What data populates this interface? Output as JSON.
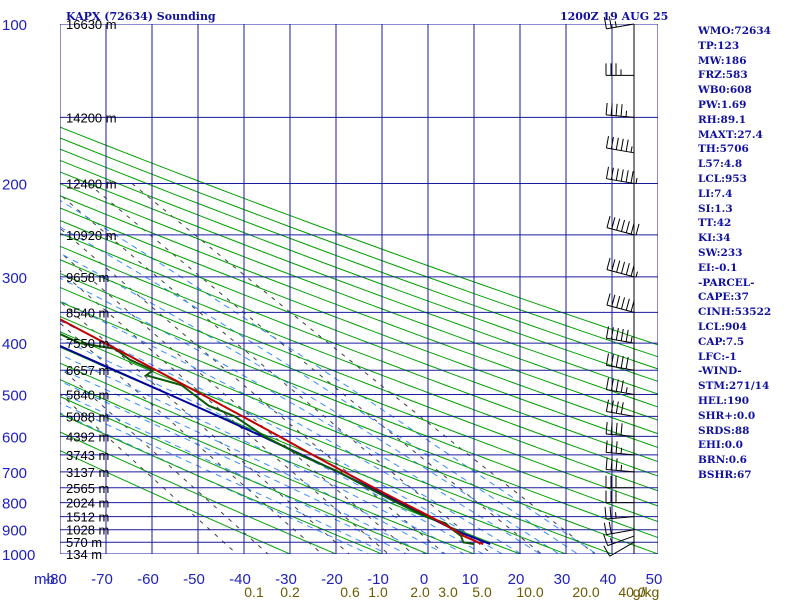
{
  "header": {
    "title_left": "KAPX (72634) Sounding",
    "title_right": "1200Z 19 AUG 25"
  },
  "colors": {
    "grid": "#1a1aa0",
    "temperature": "#c00000",
    "dewpoint": "#0a5a0a",
    "parcel": "#0000a0",
    "dry_adiabat": "#00a000",
    "moist_adiabat": "#3a8cff",
    "mixing_ratio": "#404040",
    "wind_barb": "#000000"
  },
  "chart_data": {
    "type": "skewt",
    "title": "KAPX (72634) Sounding",
    "valid_time": "1200Z 19 AUG 25",
    "pressure_axis": {
      "unit": "mb",
      "ticks": [
        100,
        200,
        300,
        400,
        500,
        600,
        700,
        800,
        900,
        1000
      ],
      "scale": "log",
      "range": [
        100,
        1000
      ]
    },
    "temperature_axis": {
      "ticks": [
        -80,
        -70,
        -60,
        -50,
        -40,
        -30,
        -20,
        -10,
        0,
        10,
        20,
        30,
        40,
        50
      ],
      "range": [
        -80,
        50
      ]
    },
    "height_labels": [
      {
        "p": 100,
        "text": "16630 m"
      },
      {
        "p": 150,
        "text": "14200 m"
      },
      {
        "p": 200,
        "text": "12400 m"
      },
      {
        "p": 250,
        "text": "10920 m"
      },
      {
        "p": 300,
        "text": "9658 m"
      },
      {
        "p": 350,
        "text": "8540 m"
      },
      {
        "p": 400,
        "text": "7550 m"
      },
      {
        "p": 450,
        "text": "6657 m"
      },
      {
        "p": 500,
        "text": "5840 m"
      },
      {
        "p": 550,
        "text": "5088 m"
      },
      {
        "p": 600,
        "text": "4392 m"
      },
      {
        "p": 650,
        "text": "3743 m"
      },
      {
        "p": 700,
        "text": "3137 m"
      },
      {
        "p": 750,
        "text": "2565 m"
      },
      {
        "p": 800,
        "text": "2024 m"
      },
      {
        "p": 850,
        "text": "1512 m"
      },
      {
        "p": 900,
        "text": "1028 m"
      },
      {
        "p": 950,
        "text": "570 m"
      },
      {
        "p": 1000,
        "text": "134 m"
      }
    ],
    "mixing_ratio_labels": [
      "0.1",
      "0.2",
      "0.6",
      "1.0",
      "2.0",
      "3.0",
      "5.0",
      "10.0",
      "20.0",
      "40.0",
      "g/kg"
    ],
    "temperature_profile": [
      [
        958,
        14.0
      ],
      [
        950,
        13.2
      ],
      [
        925,
        11.4
      ],
      [
        900,
        10.5
      ],
      [
        850,
        8.0
      ],
      [
        800,
        4.8
      ],
      [
        750,
        1.5
      ],
      [
        700,
        -1.8
      ],
      [
        650,
        -5.3
      ],
      [
        600,
        -8.8
      ],
      [
        550,
        -12.8
      ],
      [
        500,
        -17.2
      ],
      [
        450,
        -22.3
      ],
      [
        400,
        -28.0
      ],
      [
        350,
        -34.5
      ],
      [
        300,
        -41.8
      ],
      [
        250,
        -50.0
      ],
      [
        200,
        -56.5
      ],
      [
        175,
        -58.8
      ],
      [
        150,
        -62.5
      ],
      [
        125,
        -65.0
      ],
      [
        115,
        -66.5
      ],
      [
        100,
        -66.2
      ]
    ],
    "dewpoint_profile": [
      [
        958,
        12.0
      ],
      [
        950,
        10.0
      ],
      [
        925,
        10.8
      ],
      [
        900,
        10.2
      ],
      [
        875,
        10.0
      ],
      [
        850,
        7.0
      ],
      [
        800,
        3.5
      ],
      [
        750,
        0.2
      ],
      [
        700,
        -3.0
      ],
      [
        650,
        -8.0
      ],
      [
        600,
        -12.0
      ],
      [
        550,
        -14.5
      ],
      [
        525,
        -18.0
      ],
      [
        500,
        -19.0
      ],
      [
        480,
        -19.8
      ],
      [
        460,
        -25.5
      ],
      [
        450,
        -23.0
      ],
      [
        430,
        -26.0
      ],
      [
        410,
        -27.0
      ],
      [
        400,
        -33.5
      ],
      [
        370,
        -38.5
      ],
      [
        350,
        -43.0
      ],
      [
        340,
        -48.0
      ],
      [
        330,
        -45.0
      ],
      [
        310,
        -48.0
      ],
      [
        300,
        -49.0
      ],
      [
        290,
        -49.0
      ],
      [
        275,
        -48.0
      ],
      [
        260,
        -48.5
      ],
      [
        250,
        -51.0
      ],
      [
        230,
        -55.0
      ],
      [
        200,
        -60.5
      ],
      [
        180,
        -65.0
      ],
      [
        160,
        -69.0
      ],
      [
        140,
        -73.5
      ],
      [
        125,
        -76.0
      ],
      [
        100,
        -78.5
      ]
    ],
    "parcel_profile": [
      [
        958,
        15.5
      ],
      [
        904,
        10.8
      ],
      [
        850,
        7.5
      ],
      [
        800,
        4.3
      ],
      [
        750,
        0.7
      ],
      [
        700,
        -3.2
      ],
      [
        650,
        -7.6
      ],
      [
        600,
        -12.5
      ],
      [
        550,
        -18.0
      ],
      [
        500,
        -24.3
      ],
      [
        450,
        -31.4
      ],
      [
        400,
        -39.2
      ],
      [
        350,
        -48.0
      ],
      [
        300,
        -58.0
      ],
      [
        250,
        -69.0
      ],
      [
        200,
        -82.0
      ],
      [
        160,
        -95.0
      ]
    ],
    "wind_barbs": [
      {
        "p": 950,
        "dir": 240,
        "spd": 10
      },
      {
        "p": 925,
        "dir": 250,
        "spd": 15
      },
      {
        "p": 900,
        "dir": 260,
        "spd": 20
      },
      {
        "p": 850,
        "dir": 265,
        "spd": 25
      },
      {
        "p": 800,
        "dir": 270,
        "spd": 30
      },
      {
        "p": 750,
        "dir": 270,
        "spd": 30
      },
      {
        "p": 700,
        "dir": 275,
        "spd": 35
      },
      {
        "p": 650,
        "dir": 275,
        "spd": 35
      },
      {
        "p": 600,
        "dir": 275,
        "spd": 40
      },
      {
        "p": 550,
        "dir": 280,
        "spd": 40
      },
      {
        "p": 500,
        "dir": 280,
        "spd": 45
      },
      {
        "p": 450,
        "dir": 280,
        "spd": 50
      },
      {
        "p": 400,
        "dir": 280,
        "spd": 55
      },
      {
        "p": 350,
        "dir": 285,
        "spd": 60
      },
      {
        "p": 300,
        "dir": 285,
        "spd": 65
      },
      {
        "p": 250,
        "dir": 285,
        "spd": 70
      },
      {
        "p": 200,
        "dir": 280,
        "spd": 65
      },
      {
        "p": 175,
        "dir": 280,
        "spd": 55
      },
      {
        "p": 150,
        "dir": 275,
        "spd": 45
      },
      {
        "p": 125,
        "dir": 270,
        "spd": 35
      },
      {
        "p": 100,
        "dir": 260,
        "spd": 25
      }
    ]
  },
  "indices": [
    "WMO:72634",
    "TP:123",
    "MW:186",
    "FRZ:583",
    "WB0:608",
    "PW:1.69",
    "RH:89.1",
    "MAXT:27.4",
    "TH:5706",
    "L57:4.8",
    "LCL:953",
    "LI:7.4",
    "SI:1.3",
    "TT:42",
    "KI:34",
    "SW:233",
    "EI:-0.1",
    "-PARCEL-",
    "CAPE:37",
    "CINH:53522",
    "LCL:904",
    "CAP:7.5",
    "LFC:-1",
    "-WIND-",
    "STM:271/14",
    "HEL:190",
    "SHR+:0.0",
    "SRDS:88",
    "EHI:0.0",
    "BRN:0.6",
    "BSHR:67"
  ]
}
